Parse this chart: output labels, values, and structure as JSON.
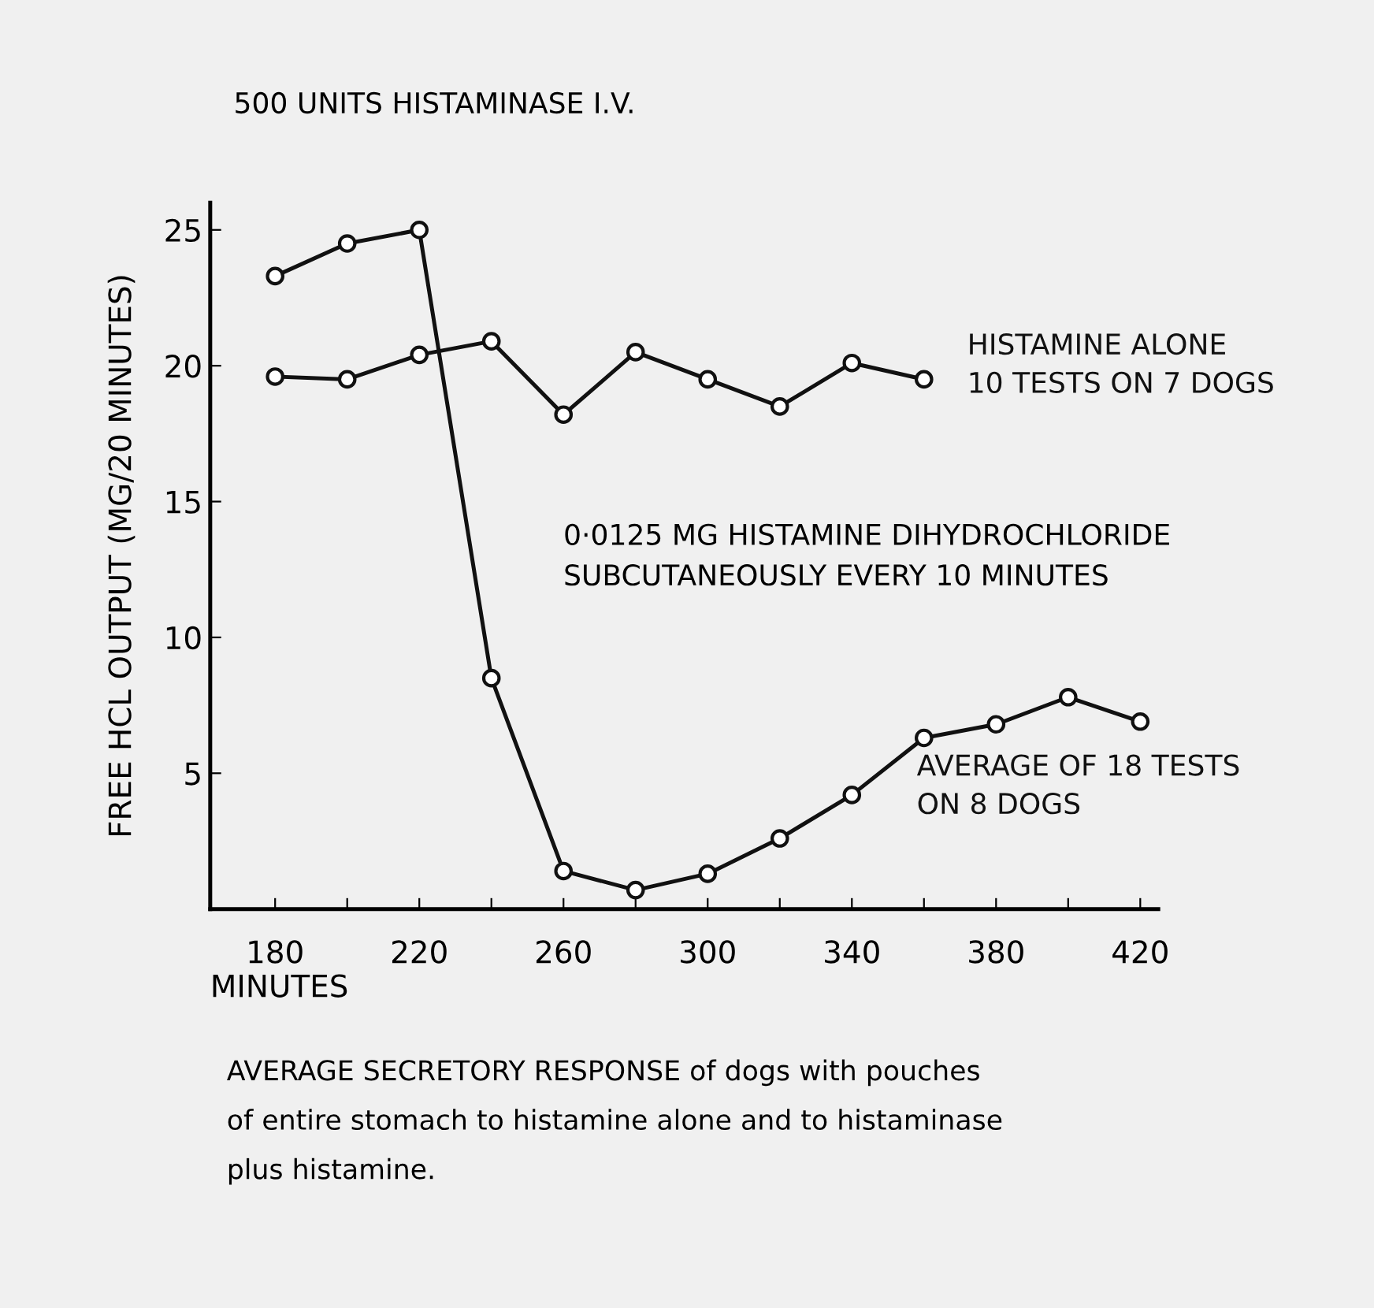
{
  "chart_data": {
    "type": "line",
    "xlabel": "MINUTES",
    "ylabel": "FREE HCL OUTPUT (MG/20 MINUTES)",
    "x": [
      180,
      200,
      220,
      240,
      260,
      280,
      300,
      320,
      340,
      360,
      380,
      400,
      420
    ],
    "series": [
      {
        "name": "HISTAMINE ALONE\n10 TESTS ON 7 DOGS",
        "color": "#111111",
        "values": [
          19.6,
          19.5,
          20.4,
          20.9,
          18.2,
          20.5,
          19.5,
          18.5,
          20.1,
          19.5,
          null,
          null,
          null
        ]
      },
      {
        "name": "AVERAGE OF 18 TESTS\nON 8 DOGS",
        "color": "#111111",
        "values": [
          23.3,
          24.5,
          25.0,
          8.5,
          1.4,
          0.7,
          1.3,
          2.6,
          4.2,
          6.3,
          6.8,
          7.8,
          6.9
        ]
      }
    ],
    "xlim": [
      162,
      425
    ],
    "ylim": [
      0,
      26
    ],
    "xticks": [
      180,
      {
        "value": 200,
        "label": null
      },
      220,
      {
        "value": 240,
        "label": null
      },
      260,
      {
        "value": 280,
        "label": null
      },
      300,
      {
        "value": 320,
        "label": null
      },
      340,
      {
        "value": 360,
        "label": null
      },
      380,
      {
        "value": 400,
        "label": null
      },
      420
    ],
    "yticks": [
      5,
      10,
      15,
      20,
      25
    ],
    "marker": "circle",
    "line_style": "solid",
    "grid": false,
    "legend": false,
    "annotations": [
      "500 UNITS HISTAMINASE I.V.",
      "0·0125 MG HISTAMINE DIHYDROCHLORIDE\nSUBCUTANEOUSLY EVERY 10 MINUTES",
      "AVERAGE SECRETORY RESPONSE of dogs with pouches\nof entire stomach to histamine alone and to histaminase\nplus histamine."
    ]
  }
}
